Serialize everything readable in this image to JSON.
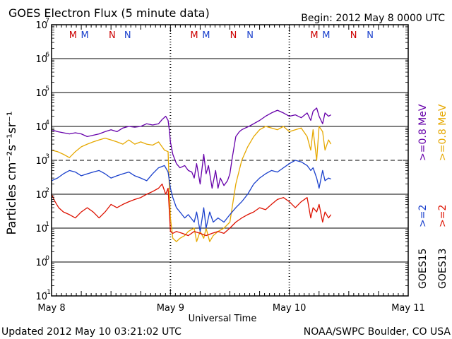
{
  "chart_data": {
    "type": "line",
    "title": "GOES Electron Flux (5 minute data)",
    "begin_label": "Begin: 2012 May 8 0000 UTC",
    "xlabel": "Universal Time",
    "ylabel": "Particles cm⁻²s⁻¹sr⁻¹",
    "y_scale": "log",
    "ylim_exp": [
      -1,
      7
    ],
    "ytick_exp": [
      "-1",
      "0",
      "1",
      "2",
      "3",
      "4",
      "5",
      "6",
      "7"
    ],
    "ytick_base": "10",
    "x_ticks": [
      "May 8",
      "May 9",
      "May 10",
      "May 11"
    ],
    "xlim_days": [
      0,
      3
    ],
    "solid_gridlines_exp": [
      0,
      1,
      2,
      4,
      5,
      6
    ],
    "dashed_gridlines_exp": [
      3
    ],
    "markers": [
      {
        "label": "M",
        "color": "#cc0000",
        "day": 0.18
      },
      {
        "label": "M",
        "color": "#1a40cc",
        "day": 0.28
      },
      {
        "label": "N",
        "color": "#cc0000",
        "day": 0.51
      },
      {
        "label": "N",
        "color": "#1a40cc",
        "day": 0.64
      },
      {
        "label": "M",
        "color": "#cc0000",
        "day": 1.2
      },
      {
        "label": "M",
        "color": "#1a40cc",
        "day": 1.3
      },
      {
        "label": "N",
        "color": "#cc0000",
        "day": 1.53
      },
      {
        "label": "N",
        "color": "#1a40cc",
        "day": 1.67
      },
      {
        "label": "M",
        "color": "#cc0000",
        "day": 2.21
      },
      {
        "label": "M",
        "color": "#1a40cc",
        "day": 2.31
      },
      {
        "label": "N",
        "color": "#cc0000",
        "day": 2.54
      },
      {
        "label": "N",
        "color": "#1a40cc",
        "day": 2.68
      }
    ],
    "series": [
      {
        "name": ">=0.8 MeV",
        "satellite": "GOES15",
        "color": "#6600aa",
        "x": [
          0.0,
          0.05,
          0.1,
          0.15,
          0.2,
          0.25,
          0.3,
          0.35,
          0.4,
          0.45,
          0.5,
          0.55,
          0.6,
          0.65,
          0.7,
          0.75,
          0.8,
          0.85,
          0.9,
          0.93,
          0.96,
          0.98,
          0.99,
          1.0,
          1.02,
          1.05,
          1.08,
          1.12,
          1.15,
          1.18,
          1.2,
          1.22,
          1.25,
          1.28,
          1.3,
          1.32,
          1.35,
          1.38,
          1.4,
          1.42,
          1.45,
          1.48,
          1.5,
          1.52,
          1.55,
          1.58,
          1.6,
          1.63,
          1.66,
          1.7,
          1.75,
          1.8,
          1.85,
          1.9,
          1.95,
          2.0,
          2.05,
          2.1,
          2.15,
          2.18,
          2.2,
          2.23,
          2.25,
          2.28,
          2.3,
          2.33,
          2.35
        ],
        "y": [
          8000,
          7000,
          6500,
          6000,
          6500,
          6000,
          5000,
          5500,
          6000,
          7000,
          8000,
          7000,
          9000,
          10000,
          9500,
          10000,
          12000,
          11000,
          12000,
          16000,
          20000,
          15000,
          8000,
          3500,
          1500,
          800,
          600,
          700,
          500,
          450,
          300,
          800,
          200,
          1500,
          400,
          700,
          150,
          500,
          150,
          300,
          180,
          250,
          400,
          1200,
          5000,
          7000,
          8000,
          9000,
          10000,
          12000,
          15000,
          20000,
          25000,
          30000,
          25000,
          20000,
          22000,
          18000,
          25000,
          15000,
          28000,
          35000,
          20000,
          12000,
          25000,
          20000,
          22000
        ]
      },
      {
        "name": ">=0.8 MeV",
        "satellite": "GOES13",
        "color": "#e6a800",
        "x": [
          0.0,
          0.05,
          0.1,
          0.15,
          0.2,
          0.25,
          0.3,
          0.35,
          0.4,
          0.45,
          0.5,
          0.55,
          0.6,
          0.65,
          0.7,
          0.75,
          0.8,
          0.85,
          0.9,
          0.95,
          0.98,
          1.0,
          1.02,
          1.05,
          1.08,
          1.12,
          1.15,
          1.2,
          1.22,
          1.25,
          1.28,
          1.3,
          1.33,
          1.36,
          1.4,
          1.45,
          1.5,
          1.55,
          1.6,
          1.65,
          1.7,
          1.75,
          1.8,
          1.85,
          1.9,
          1.95,
          2.0,
          2.05,
          2.1,
          2.15,
          2.18,
          2.2,
          2.23,
          2.25,
          2.28,
          2.3,
          2.33,
          2.35
        ],
        "y": [
          2000,
          1800,
          1500,
          1200,
          1800,
          2500,
          3000,
          3500,
          4000,
          4500,
          4000,
          3500,
          3000,
          4000,
          3000,
          3500,
          3000,
          2800,
          3500,
          2000,
          1800,
          20,
          5,
          4,
          5,
          6,
          8,
          10,
          4,
          8,
          5,
          10,
          4,
          6,
          8,
          10,
          15,
          200,
          1000,
          2500,
          5000,
          8000,
          10000,
          9000,
          8000,
          10000,
          7000,
          8000,
          9000,
          5000,
          2000,
          8000,
          1000,
          10000,
          7000,
          2000,
          4000,
          3000
        ]
      },
      {
        "name": ">=2 MeV",
        "satellite": "GOES15",
        "color": "#1a40cc",
        "x": [
          0.0,
          0.05,
          0.1,
          0.15,
          0.2,
          0.25,
          0.3,
          0.35,
          0.4,
          0.45,
          0.5,
          0.55,
          0.6,
          0.65,
          0.7,
          0.75,
          0.8,
          0.85,
          0.9,
          0.95,
          0.98,
          1.0,
          1.02,
          1.05,
          1.08,
          1.12,
          1.15,
          1.2,
          1.22,
          1.25,
          1.28,
          1.3,
          1.33,
          1.36,
          1.4,
          1.45,
          1.5,
          1.55,
          1.6,
          1.65,
          1.7,
          1.75,
          1.8,
          1.85,
          1.9,
          1.95,
          2.0,
          2.05,
          2.1,
          2.15,
          2.18,
          2.2,
          2.23,
          2.25,
          2.28,
          2.3,
          2.33,
          2.35
        ],
        "y": [
          250,
          300,
          400,
          500,
          450,
          350,
          400,
          450,
          500,
          400,
          300,
          350,
          400,
          450,
          350,
          300,
          250,
          400,
          600,
          700,
          450,
          150,
          80,
          40,
          30,
          20,
          25,
          15,
          30,
          8,
          40,
          10,
          30,
          15,
          20,
          15,
          25,
          40,
          60,
          100,
          200,
          300,
          400,
          500,
          450,
          600,
          800,
          1000,
          900,
          700,
          500,
          600,
          300,
          150,
          500,
          250,
          300,
          280
        ]
      },
      {
        "name": ">=2 MeV",
        "satellite": "GOES13",
        "color": "#dd1100",
        "x": [
          0.0,
          0.03,
          0.06,
          0.1,
          0.15,
          0.2,
          0.25,
          0.3,
          0.35,
          0.4,
          0.45,
          0.5,
          0.55,
          0.6,
          0.65,
          0.7,
          0.75,
          0.8,
          0.85,
          0.9,
          0.93,
          0.96,
          0.98,
          1.0,
          1.02,
          1.05,
          1.1,
          1.15,
          1.2,
          1.25,
          1.3,
          1.35,
          1.4,
          1.45,
          1.5,
          1.55,
          1.6,
          1.65,
          1.7,
          1.75,
          1.8,
          1.85,
          1.9,
          1.95,
          2.0,
          2.05,
          2.1,
          2.15,
          2.18,
          2.2,
          2.23,
          2.25,
          2.28,
          2.3,
          2.33,
          2.35
        ],
        "y": [
          100,
          60,
          40,
          30,
          25,
          20,
          30,
          40,
          30,
          20,
          30,
          50,
          40,
          50,
          60,
          70,
          80,
          100,
          120,
          150,
          200,
          100,
          150,
          8,
          7,
          8,
          7,
          6,
          8,
          7,
          6,
          7,
          8,
          7,
          10,
          15,
          20,
          25,
          30,
          40,
          35,
          50,
          70,
          80,
          60,
          40,
          60,
          80,
          20,
          40,
          30,
          50,
          15,
          30,
          20,
          25
        ]
      }
    ],
    "legend": [
      {
        "text": ">=0.8 MeV",
        "color": "#6600aa"
      },
      {
        "text": ">=0.8 MeV",
        "color": "#e6a800"
      },
      {
        "text": ">=2",
        "color": "#1a40cc"
      },
      {
        "text": ">=2",
        "color": "#dd1100"
      },
      {
        "text": "GOES15",
        "color": "#000000"
      },
      {
        "text": "GOES13",
        "color": "#000000"
      }
    ]
  },
  "footer": {
    "updated": "Updated 2012 May 10 03:21:02 UTC",
    "source": "NOAA/SWPC Boulder, CO USA"
  }
}
